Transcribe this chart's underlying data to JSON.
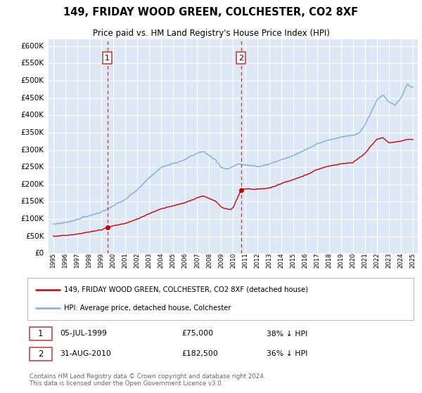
{
  "title": "149, FRIDAY WOOD GREEN, COLCHESTER, CO2 8XF",
  "subtitle": "Price paid vs. HM Land Registry's House Price Index (HPI)",
  "legend_line1": "149, FRIDAY WOOD GREEN, COLCHESTER, CO2 8XF (detached house)",
  "legend_line2": "HPI: Average price, detached house, Colchester",
  "footer": "Contains HM Land Registry data © Crown copyright and database right 2024.\nThis data is licensed under the Open Government Licence v3.0.",
  "sale1_date": 1999.507,
  "sale1_price": 75000,
  "sale1_label": "1",
  "sale1_text": "05-JUL-1999",
  "sale1_pct": "38% ↓ HPI",
  "sale2_date": 2010.663,
  "sale2_price": 182500,
  "sale2_label": "2",
  "sale2_text": "31-AUG-2010",
  "sale2_pct": "36% ↓ HPI",
  "ylim": [
    0,
    620000
  ],
  "xlim": [
    1994.6,
    2025.4
  ],
  "property_color": "#cc0000",
  "hpi_color": "#7bafd4",
  "bg_color": "#dce8f5",
  "grid_color": "#ffffff",
  "yticks": [
    0,
    50000,
    100000,
    150000,
    200000,
    250000,
    300000,
    350000,
    400000,
    450000,
    500000,
    550000,
    600000
  ],
  "ytick_labels": [
    "£0",
    "£50K",
    "£100K",
    "£150K",
    "£200K",
    "£250K",
    "£300K",
    "£350K",
    "£400K",
    "£450K",
    "£500K",
    "£550K",
    "£600K"
  ]
}
